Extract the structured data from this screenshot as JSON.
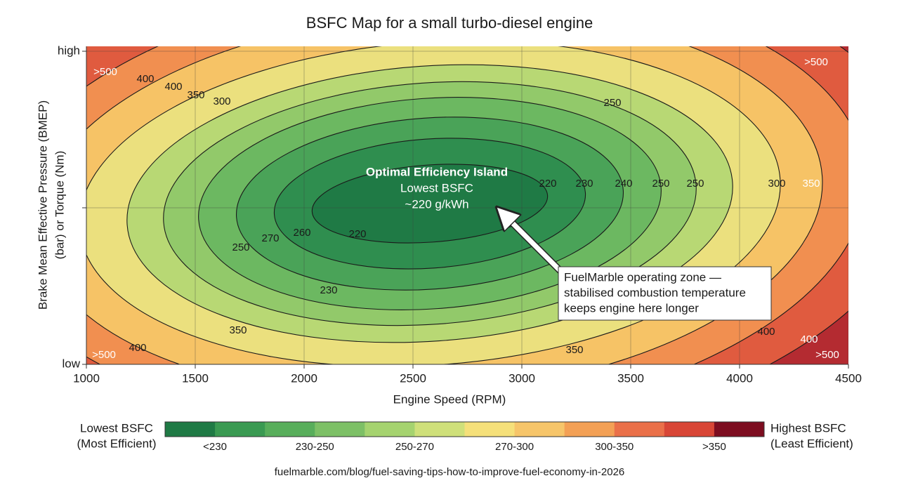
{
  "chart_data": {
    "type": "contour",
    "title": "BSFC Map for a small turbo-diesel engine",
    "xlabel": "Engine Speed (RPM)",
    "ylabel": [
      "Brake Mean Effective Pressure (BMEP)",
      "(bar) or Torque (Nm)"
    ],
    "xlim": [
      1000,
      4500
    ],
    "xticks": [
      1000,
      1500,
      2000,
      2500,
      3000,
      3500,
      4000,
      4500
    ],
    "y_categories": [
      "low",
      null,
      "high"
    ],
    "grid": true,
    "contours": {
      "levels": [
        220,
        230,
        240,
        250,
        260,
        270,
        300,
        350,
        400,
        500
      ],
      "fills": [
        "#1f7a45",
        "#2f8e4f",
        "#4aa358",
        "#6cb861",
        "#92c96a",
        "#b8d874",
        "#ebe07e",
        "#f6c366",
        "#f18f50",
        "#e05b3f",
        "#b42b31"
      ],
      "line_color": "#1a1a1a"
    },
    "contour_labels": [
      {
        "value": 500,
        "label": ">500"
      },
      400,
      400,
      350,
      300,
      250,
      220,
      230,
      240,
      250,
      250,
      300,
      350,
      {
        "value": 500,
        "label": ">500"
      },
      270,
      260,
      250,
      220,
      230,
      350,
      400,
      {
        "value": 500,
        "label": ">500"
      },
      350,
      400,
      400,
      {
        "value": 500,
        "label": ">500"
      }
    ],
    "annotations": {
      "island": [
        "Optimal Efficiency Island",
        "Lowest BSFC",
        "~220 g/kWh"
      ],
      "callout": [
        "FuelMarble operating zone —",
        "stabilised combustion temperature",
        "keeps engine here longer"
      ]
    },
    "colorbar": {
      "colors": [
        "#1f7a45",
        "#3a9a52",
        "#58ae5b",
        "#7dc066",
        "#a5d36f",
        "#cfe07a",
        "#f5e07a",
        "#f6c56a",
        "#f3a055",
        "#ea7049",
        "#d84636",
        "#7d0d20"
      ],
      "tick_labels": [
        "<230",
        "230-250",
        "250-270",
        "270-300",
        "300-350",
        ">350"
      ],
      "low_label": [
        "Lowest BSFC",
        "(Most Efficient)"
      ],
      "high_label": [
        "Highest BSFC",
        "(Least Efficient)"
      ]
    },
    "source": "fuelmarble.com/blog/fuel-saving-tips-how-to-improve-fuel-economy-in-2026"
  }
}
